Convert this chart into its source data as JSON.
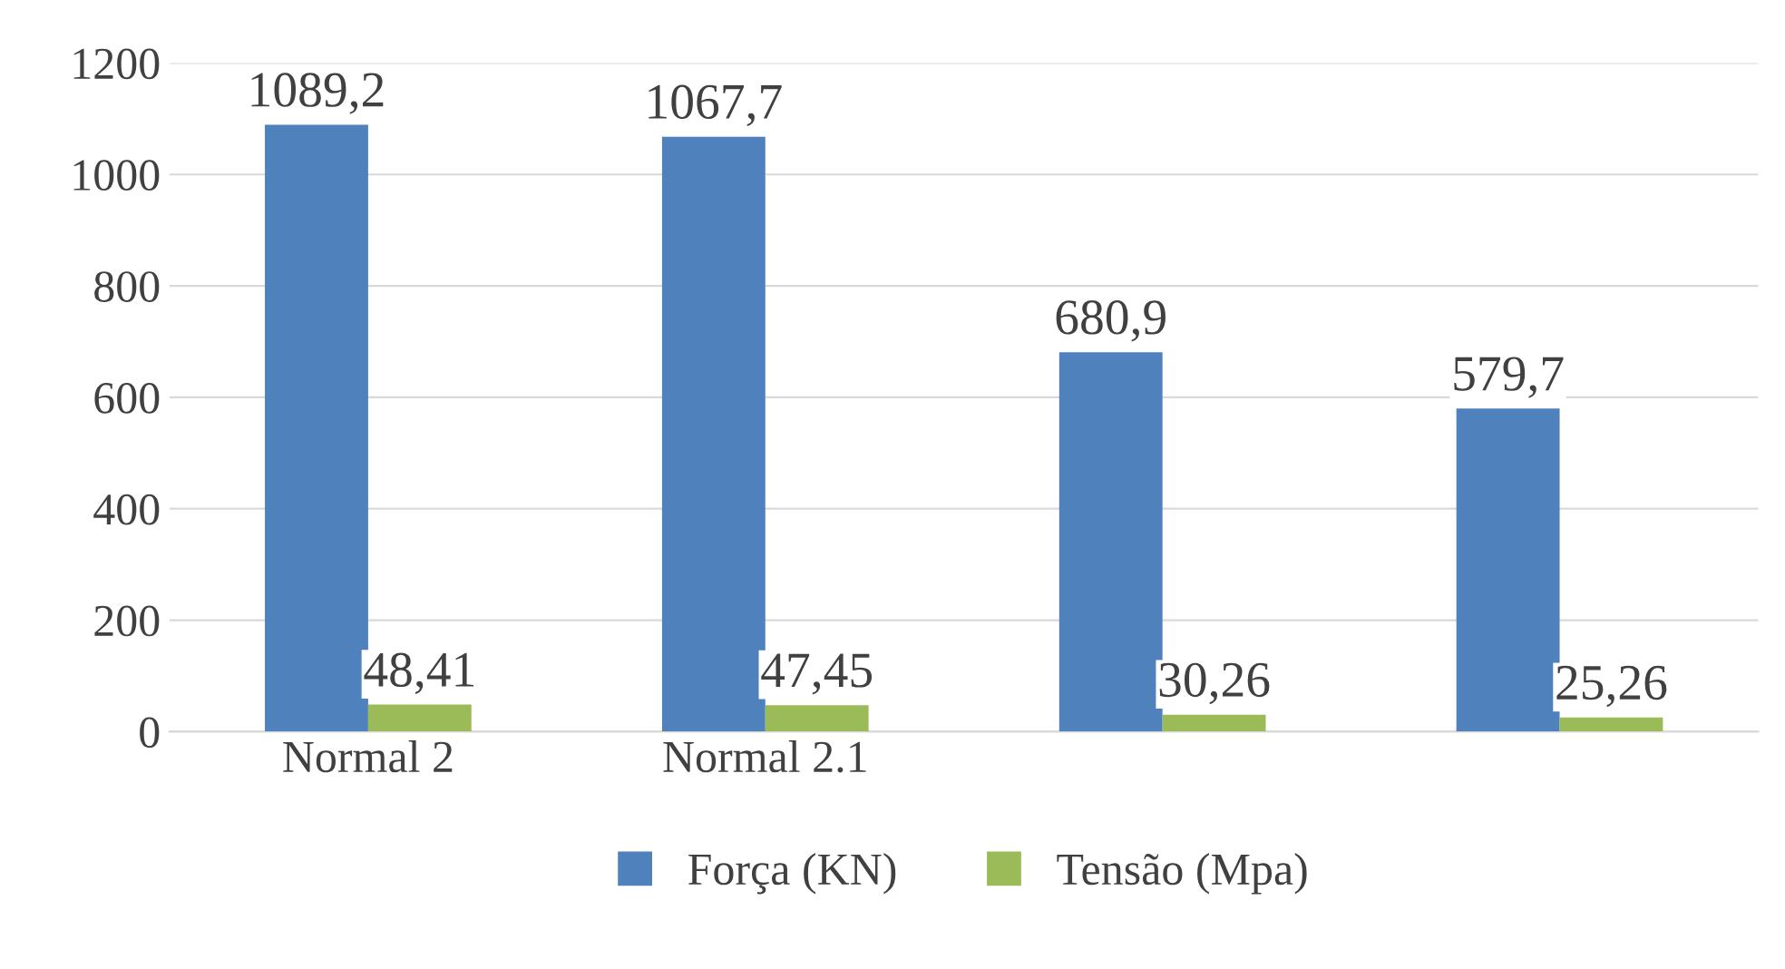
{
  "chart_data": {
    "type": "bar",
    "categories": [
      "Normal 2",
      "Normal 2.1",
      null,
      null
    ],
    "series": [
      {
        "name": "Força (KN)",
        "color": "#4f81bd",
        "values": [
          1089.2,
          1067.7,
          680.9,
          579.7
        ],
        "value_labels": [
          "1089,2",
          "1067,7",
          "680,9",
          "579,7"
        ]
      },
      {
        "name": "Tensão (Mpa)",
        "color": "#9bbb59",
        "values": [
          48.41,
          47.45,
          30.26,
          25.26
        ],
        "value_labels": [
          "48,41",
          "47,45",
          "30,26",
          "25,26"
        ]
      }
    ],
    "ylim": [
      0,
      1200
    ],
    "yticks": [
      0,
      200,
      400,
      600,
      800,
      1000,
      1200
    ],
    "grid": "y",
    "legend": "bottom"
  }
}
